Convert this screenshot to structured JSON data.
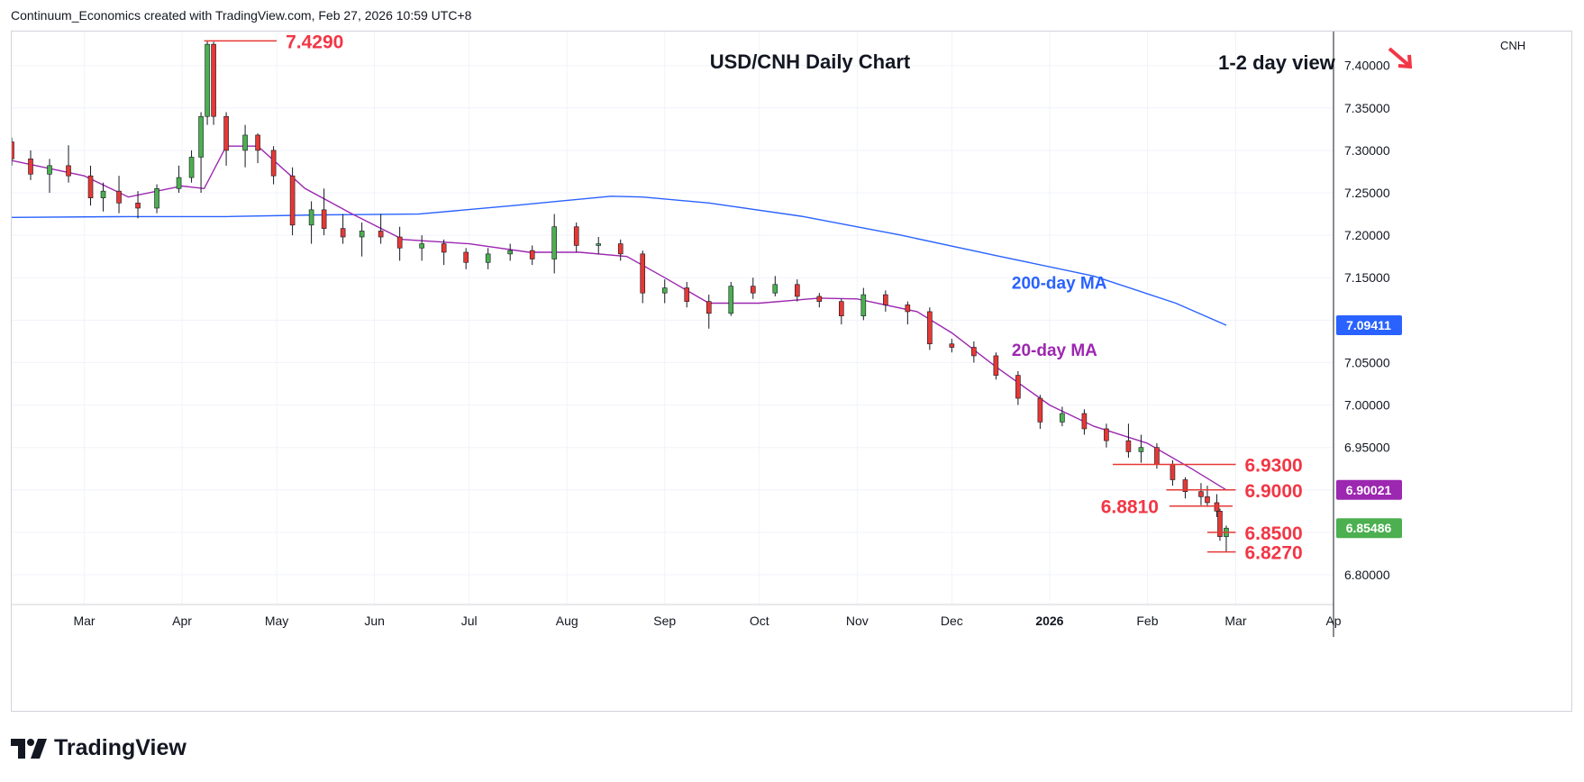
{
  "header": {
    "created_text": "Continuum_Economics created with TradingView.com, Feb 27, 2026 10:59 UTC+8"
  },
  "footer": {
    "brand": "TradingView"
  },
  "chart_data": {
    "type": "candlestick",
    "title": "USD/CNH Daily Chart",
    "view_label": "1-2 day view",
    "view_direction": "down",
    "currency_label": "CNH",
    "y_range": [
      6.765,
      7.44
    ],
    "y_ticks": [
      "7.40000",
      "7.35000",
      "7.30000",
      "7.25000",
      "7.20000",
      "7.15000",
      "7.10000",
      "7.05000",
      "7.00000",
      "6.95000",
      "6.90000",
      "6.85000",
      "6.80000"
    ],
    "x_range": [
      "2025-02-06",
      "2026-04-01"
    ],
    "x_ticks": [
      {
        "label": "Mar",
        "date": "2025-03-01"
      },
      {
        "label": "Apr",
        "date": "2025-04-01"
      },
      {
        "label": "May",
        "date": "2025-05-01"
      },
      {
        "label": "Jun",
        "date": "2025-06-01"
      },
      {
        "label": "Jul",
        "date": "2025-07-01"
      },
      {
        "label": "Aug",
        "date": "2025-08-01"
      },
      {
        "label": "Sep",
        "date": "2025-09-01"
      },
      {
        "label": "Oct",
        "date": "2025-10-01"
      },
      {
        "label": "Nov",
        "date": "2025-11-01"
      },
      {
        "label": "Dec",
        "date": "2025-12-01"
      },
      {
        "label": "2026",
        "date": "2026-01-01",
        "bold": true
      },
      {
        "label": "Feb",
        "date": "2026-02-01"
      },
      {
        "label": "Mar",
        "date": "2026-03-01"
      },
      {
        "label": "Ap",
        "date": "2026-04-01"
      }
    ],
    "series": [
      {
        "name": "200-day MA",
        "color": "#2962ff",
        "label_date": "2025-12-20",
        "label_value": 7.137,
        "points": [
          [
            "2025-02-06",
            7.221
          ],
          [
            "2025-03-15",
            7.222
          ],
          [
            "2025-04-15",
            7.222
          ],
          [
            "2025-05-15",
            7.224
          ],
          [
            "2025-06-15",
            7.225
          ],
          [
            "2025-07-15",
            7.235
          ],
          [
            "2025-08-15",
            7.246
          ],
          [
            "2025-08-25",
            7.245
          ],
          [
            "2025-09-15",
            7.238
          ],
          [
            "2025-10-15",
            7.222
          ],
          [
            "2025-11-15",
            7.2
          ],
          [
            "2025-12-15",
            7.176
          ],
          [
            "2026-01-15",
            7.152
          ],
          [
            "2026-02-10",
            7.12
          ],
          [
            "2026-02-26",
            7.094
          ]
        ]
      },
      {
        "name": "20-day MA",
        "color": "#9c27b0",
        "label_date": "2025-12-20",
        "label_value": 7.058,
        "points": [
          [
            "2025-02-06",
            7.288
          ],
          [
            "2025-03-01",
            7.27
          ],
          [
            "2025-03-15",
            7.245
          ],
          [
            "2025-04-01",
            7.258
          ],
          [
            "2025-04-08",
            7.255
          ],
          [
            "2025-04-15",
            7.305
          ],
          [
            "2025-04-25",
            7.305
          ],
          [
            "2025-05-10",
            7.255
          ],
          [
            "2025-05-25",
            7.225
          ],
          [
            "2025-06-10",
            7.195
          ],
          [
            "2025-07-01",
            7.19
          ],
          [
            "2025-07-20",
            7.18
          ],
          [
            "2025-08-05",
            7.18
          ],
          [
            "2025-08-20",
            7.175
          ],
          [
            "2025-09-01",
            7.15
          ],
          [
            "2025-09-15",
            7.12
          ],
          [
            "2025-10-01",
            7.12
          ],
          [
            "2025-10-20",
            7.126
          ],
          [
            "2025-11-01",
            7.125
          ],
          [
            "2025-11-20",
            7.11
          ],
          [
            "2025-12-01",
            7.085
          ],
          [
            "2025-12-15",
            7.045
          ],
          [
            "2026-01-01",
            7.0
          ],
          [
            "2026-01-15",
            6.975
          ],
          [
            "2026-02-01",
            6.955
          ],
          [
            "2026-02-15",
            6.925
          ],
          [
            "2026-02-26",
            6.9
          ]
        ]
      }
    ],
    "candles": [
      [
        "2025-02-06",
        7.31,
        7.315,
        7.282,
        7.29
      ],
      [
        "2025-02-12",
        7.29,
        7.3,
        7.265,
        7.272
      ],
      [
        "2025-02-18",
        7.272,
        7.29,
        7.25,
        7.282
      ],
      [
        "2025-02-24",
        7.282,
        7.306,
        7.262,
        7.27
      ],
      [
        "2025-03-03",
        7.27,
        7.282,
        7.235,
        7.244
      ],
      [
        "2025-03-07",
        7.244,
        7.262,
        7.228,
        7.252
      ],
      [
        "2025-03-12",
        7.252,
        7.27,
        7.226,
        7.238
      ],
      [
        "2025-03-18",
        7.238,
        7.252,
        7.22,
        7.232
      ],
      [
        "2025-03-24",
        7.232,
        7.26,
        7.226,
        7.255
      ],
      [
        "2025-03-31",
        7.255,
        7.282,
        7.25,
        7.268
      ],
      [
        "2025-04-04",
        7.268,
        7.3,
        7.262,
        7.292
      ],
      [
        "2025-04-07",
        7.292,
        7.345,
        7.25,
        7.34
      ],
      [
        "2025-04-09",
        7.34,
        7.429,
        7.33,
        7.425
      ],
      [
        "2025-04-11",
        7.425,
        7.428,
        7.33,
        7.34
      ],
      [
        "2025-04-15",
        7.34,
        7.345,
        7.282,
        7.3
      ],
      [
        "2025-04-21",
        7.3,
        7.33,
        7.28,
        7.318
      ],
      [
        "2025-04-25",
        7.318,
        7.32,
        7.285,
        7.3
      ],
      [
        "2025-04-30",
        7.3,
        7.305,
        7.26,
        7.27
      ],
      [
        "2025-05-06",
        7.27,
        7.28,
        7.2,
        7.212
      ],
      [
        "2025-05-12",
        7.212,
        7.24,
        7.19,
        7.23
      ],
      [
        "2025-05-16",
        7.23,
        7.255,
        7.2,
        7.208
      ],
      [
        "2025-05-22",
        7.208,
        7.225,
        7.19,
        7.198
      ],
      [
        "2025-05-28",
        7.198,
        7.215,
        7.175,
        7.205
      ],
      [
        "2025-06-03",
        7.205,
        7.225,
        7.19,
        7.198
      ],
      [
        "2025-06-09",
        7.198,
        7.21,
        7.17,
        7.185
      ],
      [
        "2025-06-16",
        7.185,
        7.2,
        7.17,
        7.19
      ],
      [
        "2025-06-23",
        7.19,
        7.195,
        7.165,
        7.18
      ],
      [
        "2025-06-30",
        7.18,
        7.185,
        7.16,
        7.168
      ],
      [
        "2025-07-07",
        7.168,
        7.185,
        7.16,
        7.178
      ],
      [
        "2025-07-14",
        7.178,
        7.19,
        7.17,
        7.182
      ],
      [
        "2025-07-21",
        7.182,
        7.188,
        7.165,
        7.172
      ],
      [
        "2025-07-28",
        7.172,
        7.225,
        7.155,
        7.21
      ],
      [
        "2025-08-04",
        7.21,
        7.215,
        7.18,
        7.188
      ],
      [
        "2025-08-11",
        7.188,
        7.198,
        7.178,
        7.19
      ],
      [
        "2025-08-18",
        7.19,
        7.195,
        7.17,
        7.178
      ],
      [
        "2025-08-25",
        7.178,
        7.182,
        7.12,
        7.132
      ],
      [
        "2025-09-01",
        7.132,
        7.148,
        7.12,
        7.138
      ],
      [
        "2025-09-08",
        7.138,
        7.145,
        7.115,
        7.122
      ],
      [
        "2025-09-15",
        7.122,
        7.13,
        7.09,
        7.108
      ],
      [
        "2025-09-22",
        7.108,
        7.145,
        7.105,
        7.14
      ],
      [
        "2025-09-29",
        7.14,
        7.15,
        7.125,
        7.132
      ],
      [
        "2025-10-06",
        7.132,
        7.152,
        7.128,
        7.142
      ],
      [
        "2025-10-13",
        7.142,
        7.148,
        7.122,
        7.128
      ],
      [
        "2025-10-20",
        7.128,
        7.132,
        7.115,
        7.122
      ],
      [
        "2025-10-27",
        7.122,
        7.125,
        7.095,
        7.105
      ],
      [
        "2025-11-03",
        7.105,
        7.138,
        7.1,
        7.13
      ],
      [
        "2025-11-10",
        7.13,
        7.135,
        7.11,
        7.118
      ],
      [
        "2025-11-17",
        7.118,
        7.122,
        7.095,
        7.11
      ],
      [
        "2025-11-24",
        7.11,
        7.115,
        7.065,
        7.072
      ],
      [
        "2025-12-01",
        7.072,
        7.078,
        7.062,
        7.068
      ],
      [
        "2025-12-08",
        7.068,
        7.075,
        7.05,
        7.058
      ],
      [
        "2025-12-15",
        7.058,
        7.062,
        7.03,
        7.035
      ],
      [
        "2025-12-22",
        7.035,
        7.04,
        7.0,
        7.008
      ],
      [
        "2025-12-29",
        7.008,
        7.012,
        6.972,
        6.98
      ],
      [
        "2026-01-05",
        6.98,
        6.998,
        6.975,
        6.99
      ],
      [
        "2026-01-12",
        6.99,
        6.995,
        6.965,
        6.972
      ],
      [
        "2026-01-19",
        6.972,
        6.978,
        6.95,
        6.958
      ],
      [
        "2026-01-26",
        6.958,
        6.978,
        6.938,
        6.945
      ],
      [
        "2026-01-30",
        6.945,
        6.965,
        6.932,
        6.95
      ],
      [
        "2026-02-04",
        6.95,
        6.955,
        6.925,
        6.93
      ],
      [
        "2026-02-09",
        6.93,
        6.935,
        6.905,
        6.912
      ],
      [
        "2026-02-13",
        6.912,
        6.915,
        6.89,
        6.898
      ],
      [
        "2026-02-18",
        6.898,
        6.908,
        6.882,
        6.892
      ],
      [
        "2026-02-20",
        6.892,
        6.905,
        6.88,
        6.885
      ],
      [
        "2026-02-23",
        6.885,
        6.895,
        6.868,
        6.875
      ],
      [
        "2026-02-24",
        6.875,
        6.878,
        6.84,
        6.845
      ],
      [
        "2026-02-26",
        6.845,
        6.858,
        6.827,
        6.855
      ]
    ],
    "levels": [
      {
        "label": "7.4290",
        "value": 7.429,
        "from": "2025-04-08",
        "to": "2025-05-01",
        "text_side": "right"
      },
      {
        "label": "6.9300",
        "value": 6.93,
        "from": "2026-01-21",
        "to": "2026-03-01",
        "text_side": "right"
      },
      {
        "label": "6.9000",
        "value": 6.9,
        "from": "2026-02-07",
        "to": "2026-03-01",
        "text_side": "right"
      },
      {
        "label": "6.8810",
        "value": 6.881,
        "from": "2026-02-08",
        "to": "2026-02-28",
        "text_side": "left"
      },
      {
        "label": "6.8500",
        "value": 6.85,
        "from": "2026-02-20",
        "to": "2026-03-01",
        "text_side": "right"
      },
      {
        "label": "6.8270",
        "value": 6.827,
        "from": "2026-02-20",
        "to": "2026-03-01",
        "text_side": "right"
      }
    ],
    "price_tags": [
      {
        "label": "7.09411",
        "value": 7.094,
        "color": "#2962ff"
      },
      {
        "label": "6.90021",
        "value": 6.9,
        "color": "#9c27b0"
      },
      {
        "label": "6.85486",
        "value": 6.855,
        "color": "#4caf50"
      }
    ],
    "colors": {
      "up": "#4caf50",
      "down": "#e53935",
      "level": "#e53935",
      "level_text": "#f23645"
    }
  }
}
